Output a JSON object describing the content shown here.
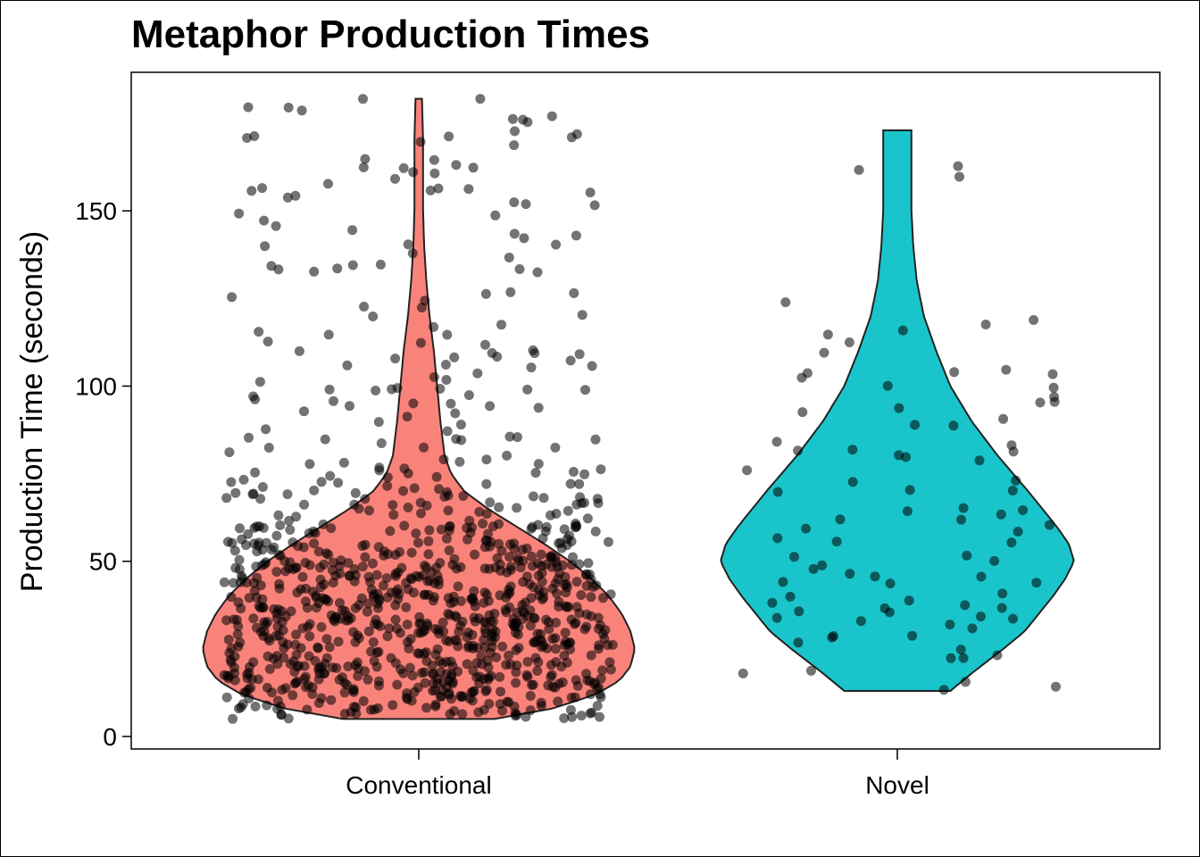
{
  "chart_data": {
    "type": "violin",
    "title": "Metaphor Production Times",
    "xlabel": "",
    "ylabel": "Production Time (seconds)",
    "ylim": [
      0,
      187
    ],
    "yticks": [
      "0",
      "50",
      "100",
      "150"
    ],
    "categories": [
      "Conventional",
      "Novel"
    ],
    "grid": false,
    "legend": "none",
    "colors": {
      "Conventional": "#F8766D",
      "Novel": "#00BFC4",
      "points": "#000000"
    },
    "series": [
      {
        "category": "Conventional",
        "min": 5,
        "max": 182,
        "density_profile": [
          [
            5,
            0.35
          ],
          [
            8,
            0.62
          ],
          [
            12,
            0.82
          ],
          [
            16,
            0.93
          ],
          [
            20,
            0.98
          ],
          [
            25,
            1.0
          ],
          [
            30,
            0.98
          ],
          [
            35,
            0.94
          ],
          [
            40,
            0.88
          ],
          [
            45,
            0.8
          ],
          [
            50,
            0.7
          ],
          [
            55,
            0.58
          ],
          [
            60,
            0.45
          ],
          [
            65,
            0.32
          ],
          [
            70,
            0.21
          ],
          [
            75,
            0.15
          ],
          [
            80,
            0.12
          ],
          [
            90,
            0.1
          ],
          [
            100,
            0.085
          ],
          [
            110,
            0.07
          ],
          [
            120,
            0.05
          ],
          [
            130,
            0.035
          ],
          [
            140,
            0.025
          ],
          [
            150,
            0.02
          ],
          [
            160,
            0.02
          ],
          [
            170,
            0.02
          ],
          [
            182,
            0.015
          ]
        ],
        "n_points": 1000
      },
      {
        "category": "Novel",
        "min": 13,
        "max": 173,
        "density_profile": [
          [
            13,
            0.3
          ],
          [
            18,
            0.42
          ],
          [
            25,
            0.6
          ],
          [
            30,
            0.72
          ],
          [
            35,
            0.8
          ],
          [
            40,
            0.88
          ],
          [
            45,
            0.95
          ],
          [
            50,
            1.0
          ],
          [
            55,
            0.97
          ],
          [
            60,
            0.9
          ],
          [
            65,
            0.82
          ],
          [
            70,
            0.74
          ],
          [
            80,
            0.57
          ],
          [
            90,
            0.42
          ],
          [
            100,
            0.3
          ],
          [
            110,
            0.22
          ],
          [
            120,
            0.15
          ],
          [
            130,
            0.11
          ],
          [
            140,
            0.09
          ],
          [
            150,
            0.08
          ],
          [
            160,
            0.08
          ],
          [
            173,
            0.08
          ]
        ],
        "n_points": 90
      }
    ]
  }
}
